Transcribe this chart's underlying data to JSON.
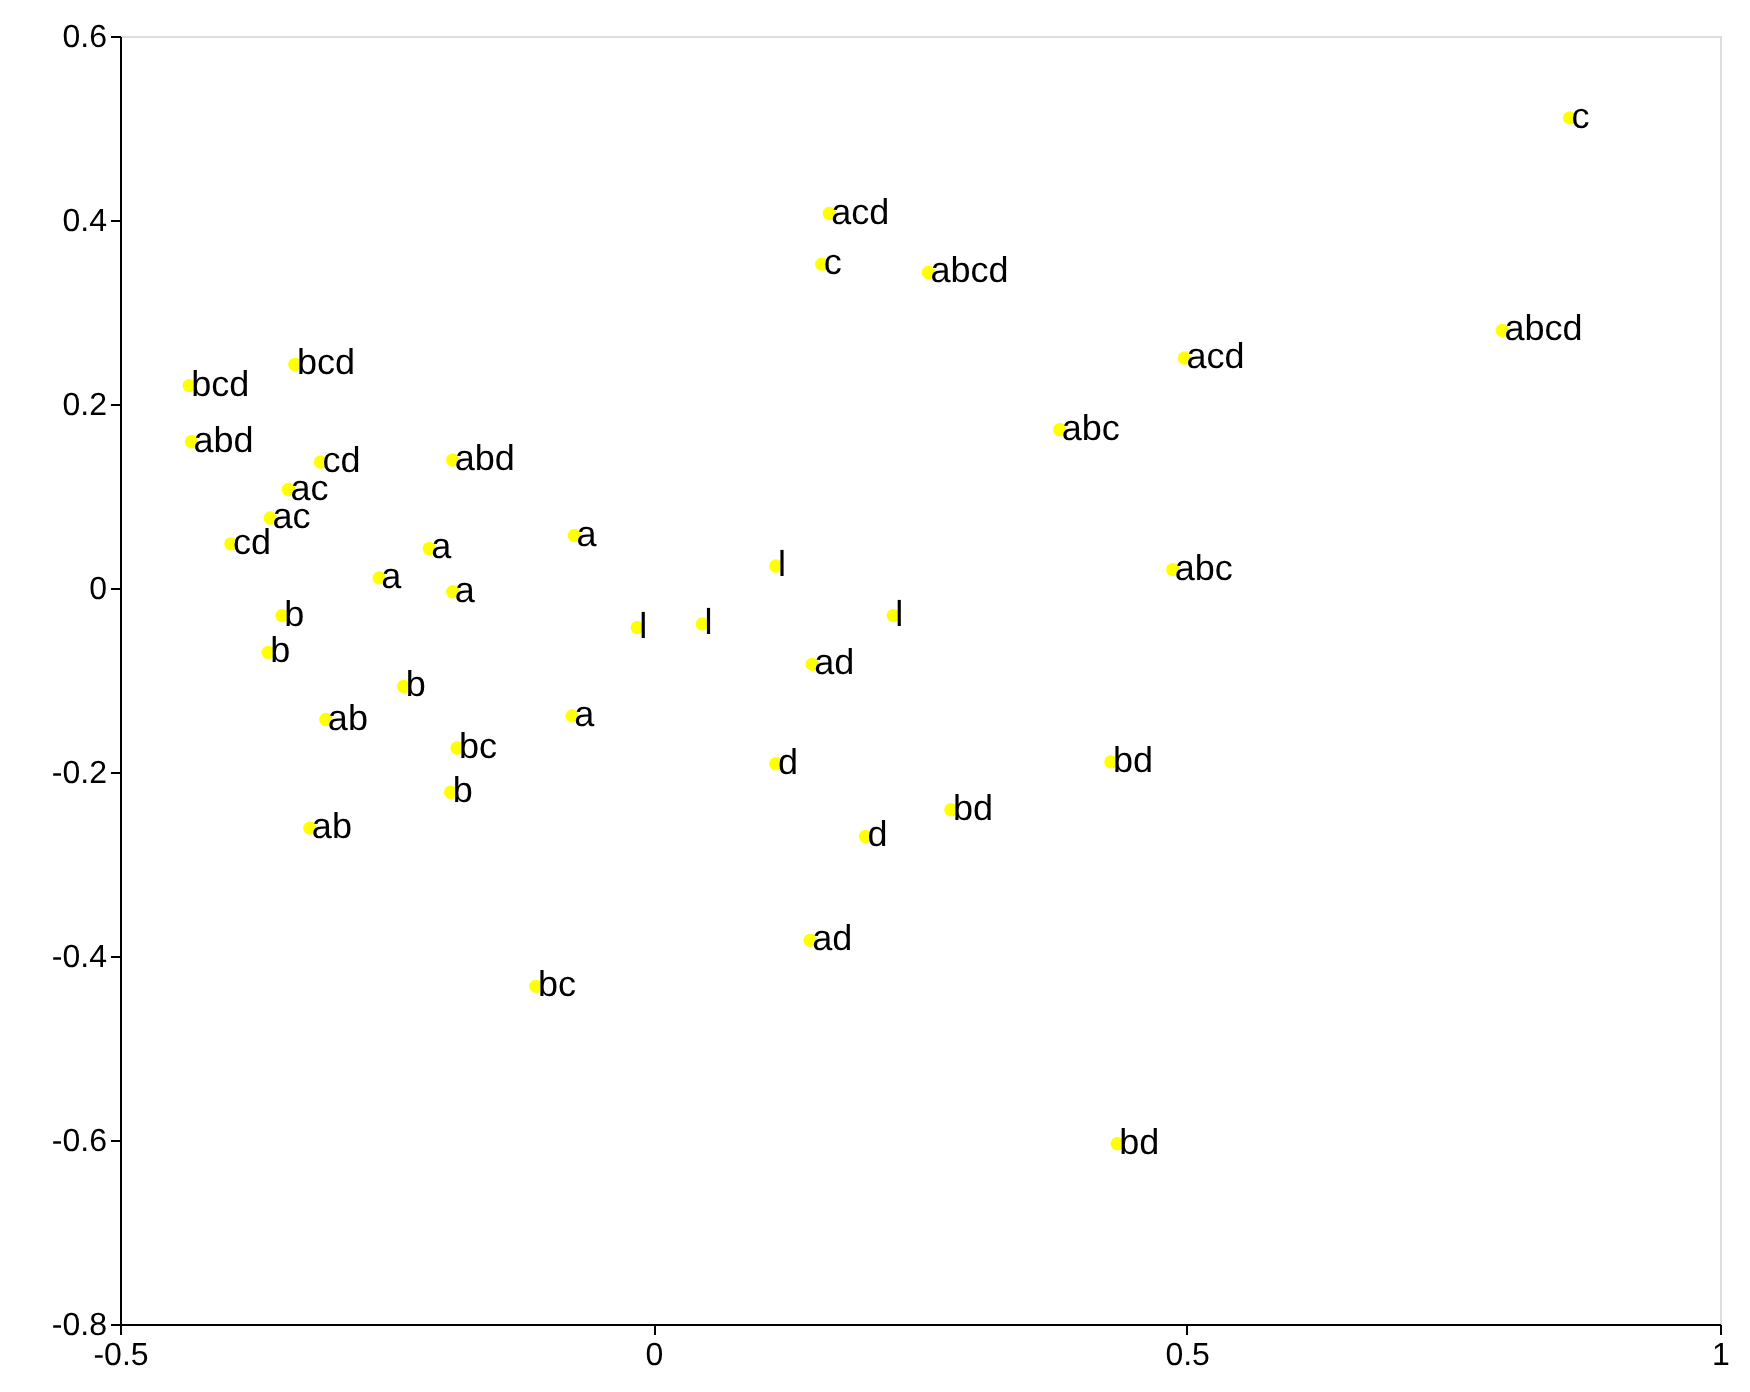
{
  "chart_data": {
    "type": "scatter",
    "marker": "circle",
    "color": "#ffff00",
    "grid": false,
    "x": [
      0.859,
      0.165,
      0.158,
      0.258,
      0.796,
      0.498,
      -0.435,
      -0.336,
      -0.433,
      -0.312,
      -0.188,
      0.381,
      -0.342,
      -0.359,
      -0.396,
      -0.21,
      -0.074,
      -0.257,
      -0.188,
      0.115,
      -0.015,
      0.046,
      0.225,
      0.487,
      -0.348,
      -0.361,
      -0.234,
      -0.307,
      -0.076,
      -0.184,
      -0.19,
      0.149,
      0.115,
      0.199,
      0.279,
      0.429,
      -0.322,
      0.147,
      -0.11,
      0.435
    ],
    "values": [
      0.511,
      0.407,
      0.352,
      0.343,
      0.28,
      0.25,
      0.22,
      0.243,
      0.159,
      0.137,
      0.139,
      0.172,
      0.107,
      0.076,
      0.048,
      0.043,
      0.057,
      0.011,
      -0.004,
      0.024,
      -0.043,
      -0.039,
      -0.03,
      0.02,
      -0.03,
      -0.07,
      -0.107,
      -0.143,
      -0.139,
      -0.174,
      -0.222,
      -0.083,
      -0.191,
      -0.27,
      -0.241,
      -0.189,
      -0.261,
      -0.383,
      -0.433,
      -0.604
    ],
    "value_labels": [
      "c",
      "acd",
      "c",
      "abcd",
      "abcd",
      "acd",
      "bcd",
      "bcd",
      "abd",
      "cd",
      "abd",
      "abc",
      "ac",
      "ac",
      "cd",
      "a",
      "a",
      "a",
      "a",
      "l",
      "l",
      "l",
      "l",
      "abc",
      "b",
      "b",
      "b",
      "ab",
      "a",
      "bc",
      "b",
      "ad",
      "d",
      "d",
      "bd",
      "bd",
      "ab",
      "ad",
      "bc",
      "bd"
    ],
    "xlim": [
      -0.5,
      1
    ],
    "xticks": [
      -0.5,
      0,
      0.5,
      1
    ],
    "ylim": [
      -0.8,
      0.6
    ],
    "yticks": [
      -0.8,
      -0.6,
      -0.4,
      -0.2,
      0,
      0.2,
      0.4,
      0.6
    ]
  }
}
